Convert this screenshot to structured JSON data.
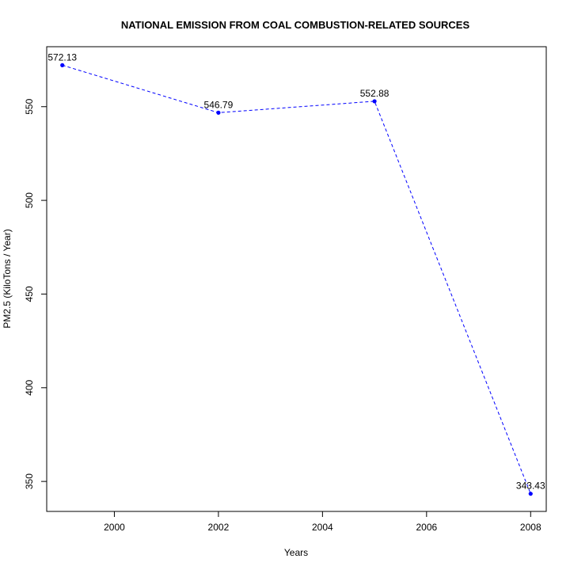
{
  "chart_data": {
    "type": "line",
    "title": "NATIONAL EMISSION FROM COAL COMBUSTION-RELATED SOURCES",
    "xlabel": "Years",
    "ylabel": "PM2.5 (KiloTons / Year)",
    "x": [
      1999,
      2002,
      2005,
      2008
    ],
    "series": [
      {
        "values": [
          572.13,
          546.79,
          552.88,
          343.43
        ],
        "labels": [
          "572.13",
          "546.79",
          "552.88",
          "343.43"
        ]
      }
    ],
    "xticks": [
      2000,
      2002,
      2004,
      2006,
      2008
    ],
    "yticks": [
      350,
      400,
      450,
      500,
      550
    ],
    "xlim": [
      1998.7,
      2008.3
    ],
    "ylim": [
      334,
      582
    ],
    "line_style": "dashed",
    "line_color": "#0000ff",
    "point_color": "#0000ff",
    "grid": false,
    "legend": "none"
  }
}
